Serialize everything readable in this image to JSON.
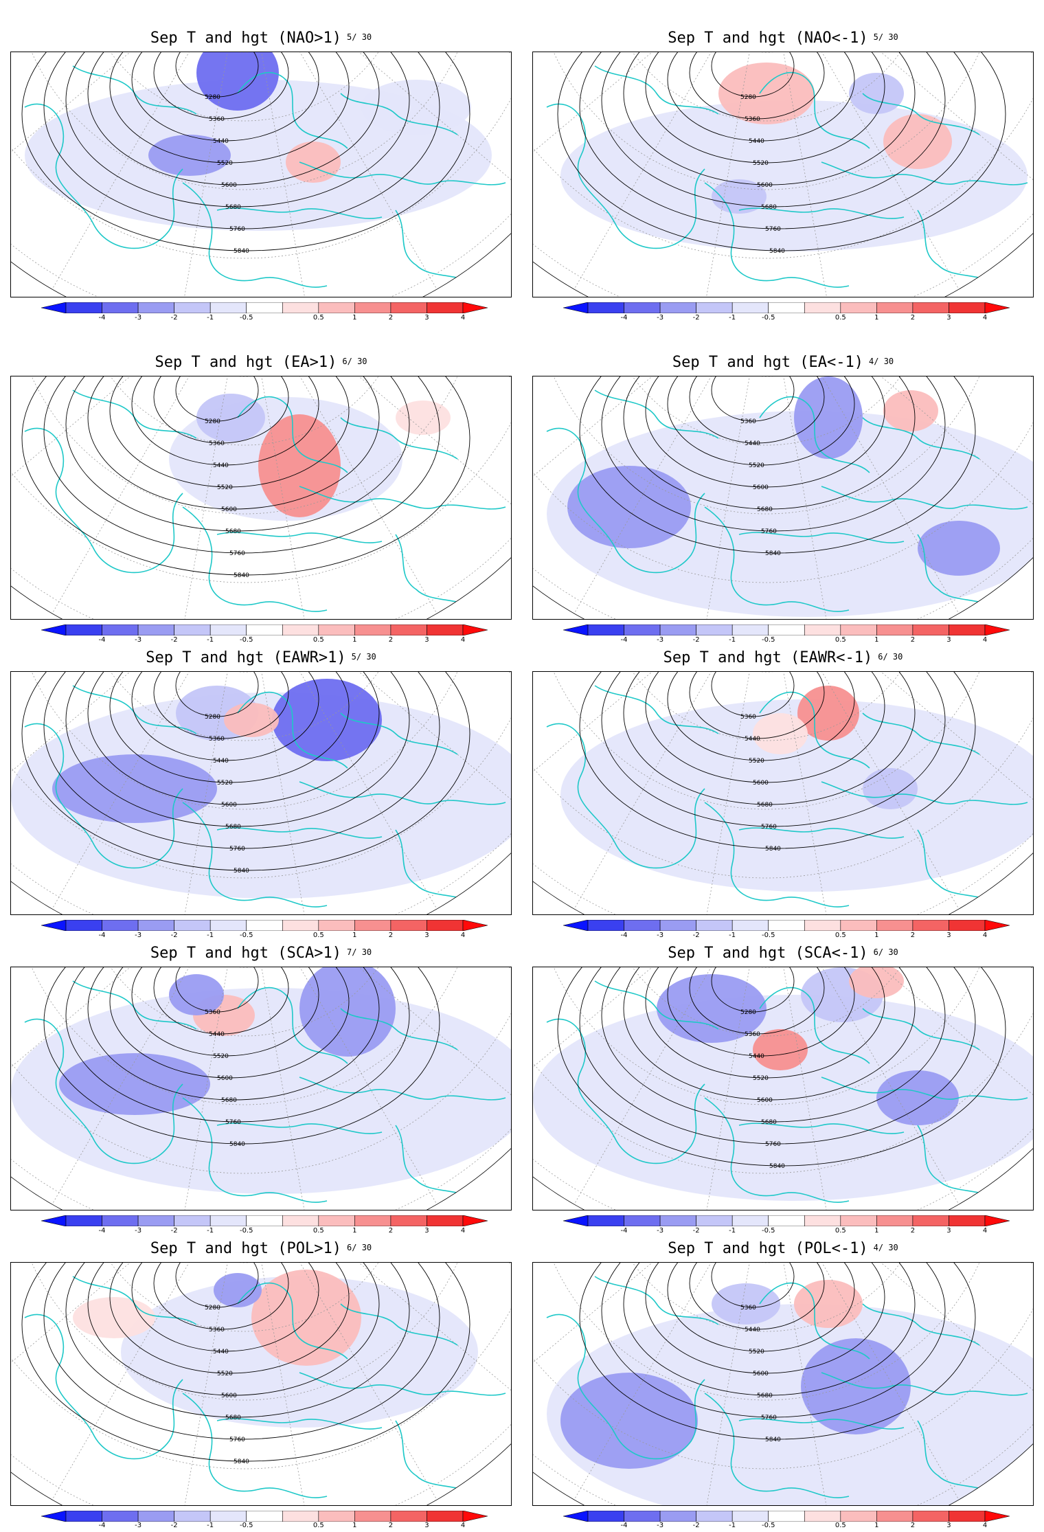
{
  "colorbar": {
    "labels": [
      "-4",
      "-3",
      "-2",
      "-1",
      "-0.5",
      "0.5",
      "1",
      "2",
      "3",
      "4"
    ],
    "colors": [
      "#0a14ff",
      "#3a40f0",
      "#6e6ef0",
      "#9a9cf2",
      "#c4c6f8",
      "#e4e6fb",
      "#ffffff",
      "#fde0e0",
      "#fbbdbd",
      "#f79090",
      "#f46464",
      "#f03434",
      "#ff0a0a"
    ]
  },
  "map_colors": {
    "coast": "#1ec8c8",
    "contour": "#000000",
    "grid": "#999999"
  },
  "panels": [
    {
      "title": "Sep T and hgt (NAO>1)",
      "count": "5/ 30",
      "contours": [
        "5280",
        "5360",
        "5440",
        "5520",
        "5600",
        "5680",
        "5760",
        "5840"
      ]
    },
    {
      "title": "Sep T and hgt (NAO<-1)",
      "count": "5/ 30",
      "contours": [
        "5280",
        "5360",
        "5440",
        "5520",
        "5600",
        "5680",
        "5760",
        "5840"
      ]
    },
    {
      "title": "Sep T and hgt (EA>1)",
      "count": "6/ 30",
      "contours": [
        "5280",
        "5360",
        "5440",
        "5520",
        "5600",
        "5680",
        "5760",
        "5840"
      ]
    },
    {
      "title": "Sep T and hgt (EA<-1)",
      "count": "4/ 30",
      "contours": [
        "5360",
        "5440",
        "5520",
        "5600",
        "5680",
        "5760",
        "5840"
      ]
    },
    {
      "title": "Sep T and hgt (EAWR>1)",
      "count": "5/ 30",
      "contours": [
        "5280",
        "5360",
        "5440",
        "5520",
        "5600",
        "5680",
        "5760",
        "5840"
      ]
    },
    {
      "title": "Sep T and hgt (EAWR<-1)",
      "count": "6/ 30",
      "contours": [
        "5360",
        "5440",
        "5520",
        "5600",
        "5680",
        "5760",
        "5840"
      ]
    },
    {
      "title": "Sep T and hgt (SCA>1)",
      "count": "7/ 30",
      "contours": [
        "5360",
        "5440",
        "5520",
        "5600",
        "5680",
        "5760",
        "5840"
      ]
    },
    {
      "title": "Sep T and hgt (SCA<-1)",
      "count": "6/ 30",
      "contours": [
        "5280",
        "5360",
        "5440",
        "5520",
        "5600",
        "5680",
        "5760",
        "5840"
      ]
    },
    {
      "title": "Sep T and hgt (POL>1)",
      "count": "6/ 30",
      "contours": [
        "5280",
        "5360",
        "5440",
        "5520",
        "5600",
        "5680",
        "5760",
        "5840"
      ]
    },
    {
      "title": "Sep T and hgt (POL<-1)",
      "count": "4/ 30",
      "contours": [
        "5360",
        "5440",
        "5520",
        "5600",
        "5680",
        "5760",
        "5840"
      ]
    }
  ]
}
